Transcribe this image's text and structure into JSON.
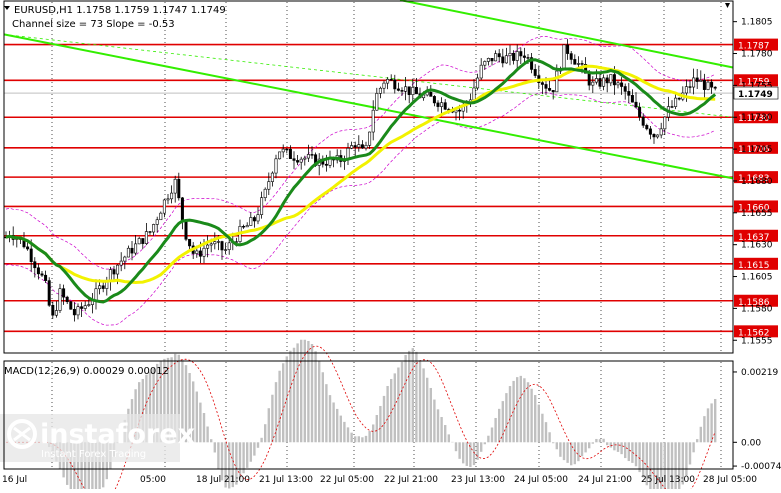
{
  "header": {
    "line1": "EURUSD,H1  1.1758 1.1759 1.1747 1.1749",
    "line2": "Channel size = 73 Slope = -0.53"
  },
  "chart_data": {
    "type": "candlestick",
    "symbol": "EURUSD",
    "timeframe": "H1",
    "ohlc": {
      "open": 1.1758,
      "high": 1.1759,
      "low": 1.1747,
      "close": 1.1749
    },
    "ylim": [
      1.1545,
      1.1822
    ],
    "y_ticks": [
      1.1805,
      1.178,
      1.1755,
      1.173,
      1.1705,
      1.168,
      1.1655,
      1.163,
      1.1605,
      1.158,
      1.1555
    ],
    "levels": [
      {
        "value": 1.1787,
        "label": "1.1787",
        "color": "#e00000"
      },
      {
        "value": 1.1759,
        "label": "1.1759",
        "color": "#e00000"
      },
      {
        "value": 1.173,
        "label": "1.1730",
        "color": "#e00000"
      },
      {
        "value": 1.1706,
        "label": "1.1706",
        "color": "#e00000"
      },
      {
        "value": 1.1683,
        "label": "1.1683",
        "color": "#e00000"
      },
      {
        "value": 1.166,
        "label": "1.1660",
        "color": "#e00000"
      },
      {
        "value": 1.1637,
        "label": "1.1637",
        "color": "#e00000"
      },
      {
        "value": 1.1615,
        "label": "1.1615",
        "color": "#e00000"
      },
      {
        "value": 1.1586,
        "label": "1.1586",
        "color": "#e00000"
      },
      {
        "value": 1.1562,
        "label": "1.1562",
        "color": "#e00000"
      }
    ],
    "current_price": {
      "value": 1.1749,
      "label": "1.1749"
    },
    "x_labels": [
      "18 Jul 21:00",
      "21 Jul 13:00",
      "22 Jul 05:00",
      "22 Jul 21:00",
      "23 Jul 13:00",
      "24 Jul 05:00",
      "24 Jul 21:00",
      "25 Jul 13:00",
      "28 Jul 05:00"
    ],
    "x_label_first": "16 Jul",
    "x_label_second": "05:00",
    "macd": {
      "label": "MACD(12,26,9) 0.00029 0.00012",
      "ylim": [
        -0.0008,
        0.0025
      ],
      "y_ticks": [
        {
          "value": 0.00219,
          "label": "0.00219"
        },
        {
          "value": 0.0,
          "label": "0.00"
        },
        {
          "value": -0.00074,
          "label": "-0.00074"
        }
      ]
    },
    "watermark": {
      "brand": "instaforex",
      "tagline": "Instant Forex Trading"
    },
    "colors": {
      "candle": "#000000",
      "channel": "#33ee00",
      "ma_fast": "#1a8a1a",
      "ma_slow": "#f2f200",
      "bollinger": "#cc00cc",
      "level": "#e00000",
      "macd_hist": "#c0c0c0",
      "macd_signal": "#e00000"
    }
  }
}
